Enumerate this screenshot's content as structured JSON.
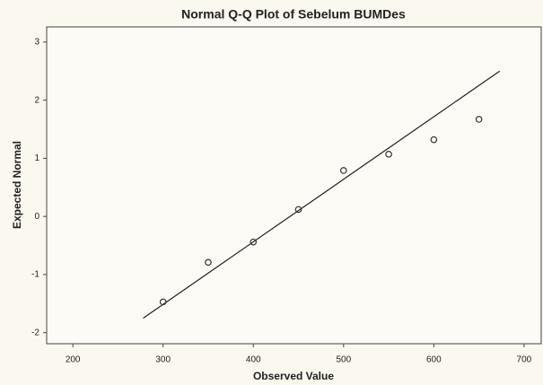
{
  "chart_data": {
    "type": "scatter",
    "title": "Normal Q-Q Plot of Sebelum BUMDes",
    "x_label": "Observed Value",
    "y_label": "Expected Normal",
    "x": [
      300,
      350,
      400,
      450,
      500,
      550,
      600,
      650
    ],
    "values": [
      -1.47,
      -0.79,
      -0.44,
      0.12,
      0.79,
      1.07,
      1.32,
      1.67
    ],
    "color": "#333333",
    "reference_line": {
      "x": [
        278,
        673
      ],
      "y": [
        -1.75,
        2.5
      ]
    },
    "xlim": [
      171,
      719
    ],
    "xticks": [
      200,
      300,
      400,
      500,
      600,
      700
    ],
    "ylim": [
      -2.19,
      3.26
    ],
    "yticks": [
      -2,
      -1,
      0,
      1,
      2,
      3
    ]
  }
}
